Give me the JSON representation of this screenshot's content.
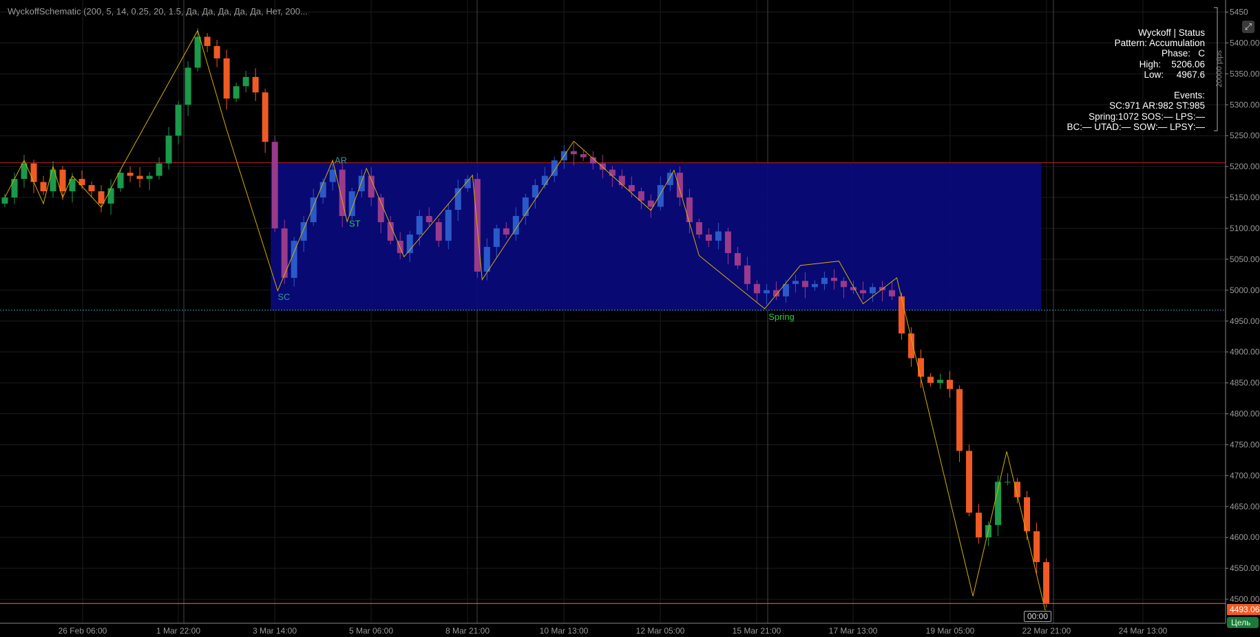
{
  "indicator_title": "WyckoffSchematic (200, 5, 14, 0.25, 20, 1.5, Да, Да, Да, Да, Да, Нет, 200...",
  "status_panel": {
    "lines": [
      "Wyckoff | Status",
      "Pattern: Accumulation",
      "Phase:   C",
      "High:    5206.06",
      "Low:     4967.6",
      "",
      "Events:",
      "SC:971 AR:982 ST:985",
      "Spring:1072 SOS:— LPS:—",
      "BC:— UTAD:— SOW:— LPSY:—"
    ],
    "pips_label": "20000 pips"
  },
  "corner_button_icon": "expand-arrow-icon",
  "current_price_label": "4493.06",
  "target_label": "Цель",
  "cursor_time_label": "00:00",
  "colors": {
    "up": "#1a9a4a",
    "down": "#f05a24",
    "box_up": "#2a5ac8",
    "box_down": "#9a3a8a",
    "box_fill": "#0a0a80",
    "zigzag": "#d4b000",
    "high_line": "#c02020",
    "low_line": "#2aa0c0",
    "price_line": "#f05a24",
    "event_label": "#20d040",
    "event_label_dim": "#2a9a9a"
  },
  "chart_data": {
    "type": "candlestick",
    "y_ticks": [
      5450,
      5400,
      5350,
      5300,
      5250,
      5200,
      5150,
      5100,
      5050,
      5000,
      4950,
      4900,
      4850,
      4800,
      4750,
      4700,
      4650,
      4600,
      4550,
      4500
    ],
    "y_tick_labels": [
      "5450",
      "5400.00",
      "5350.00",
      "5300.00",
      "5250.00",
      "5200.00",
      "5150.00",
      "5100.00",
      "5050.00",
      "5000.00",
      "4950.00",
      "4900.00",
      "4850.00",
      "4800.00",
      "4750.00",
      "4700.00",
      "4650.00",
      "4600.00",
      "4550.00",
      "4500.00"
    ],
    "x_tick_labels": [
      "26 Feb 06:00",
      "1 Mar 22:00",
      "3 Mar 14:00",
      "5 Mar 06:00",
      "8 Mar 21:00",
      "10 Mar 13:00",
      "12 Mar 05:00",
      "15 Mar 21:00",
      "17 Mar 13:00",
      "19 Mar 05:00",
      "22 Mar 21:00",
      "24 Mar 13:00"
    ],
    "closes": [
      5150,
      5180,
      5205,
      5175,
      5160,
      5195,
      5160,
      5180,
      5170,
      5160,
      5140,
      5165,
      5190,
      5185,
      5180,
      5185,
      5205,
      5250,
      5300,
      5360,
      5410,
      5395,
      5375,
      5310,
      5330,
      5345,
      5320,
      5240,
      5100,
      5020,
      5080,
      5110,
      5150,
      5175,
      5195,
      5120,
      5160,
      5185,
      5150,
      5110,
      5080,
      5060,
      5090,
      5120,
      5110,
      5080,
      5130,
      5165,
      5180,
      5030,
      5070,
      5100,
      5090,
      5120,
      5150,
      5170,
      5185,
      5210,
      5225,
      5220,
      5215,
      5205,
      5195,
      5185,
      5170,
      5160,
      5145,
      5135,
      5170,
      5190,
      5150,
      5110,
      5090,
      5080,
      5095,
      5060,
      5040,
      5010,
      4995,
      5000,
      4990,
      5010,
      5015,
      5005,
      5010,
      5020,
      5015,
      5005,
      5000,
      4995,
      5005,
      5000,
      4990,
      4930,
      4890,
      4860,
      4850,
      4855,
      4840,
      4740,
      4640,
      4600,
      4620,
      4690,
      4690,
      4665,
      4610,
      4560,
      4493.06
    ],
    "zigzag": [
      [
        0,
        5150
      ],
      [
        2,
        5210
      ],
      [
        4,
        5140
      ],
      [
        5,
        5200
      ],
      [
        6,
        5150
      ],
      [
        7,
        5185
      ],
      [
        10,
        5134
      ],
      [
        12,
        5195
      ],
      [
        20,
        5420
      ],
      [
        23,
        5260
      ],
      [
        28.3,
        4999
      ],
      [
        34,
        5210
      ],
      [
        35.5,
        5111
      ],
      [
        37.5,
        5197
      ],
      [
        41.4,
        5054
      ],
      [
        48.5,
        5186
      ],
      [
        49.5,
        5017
      ],
      [
        59,
        5241
      ],
      [
        67,
        5129
      ],
      [
        69.4,
        5194
      ],
      [
        72,
        5056
      ],
      [
        78.8,
        4970
      ],
      [
        82.5,
        5040
      ],
      [
        86.5,
        5047
      ],
      [
        89,
        4978
      ],
      [
        92.5,
        5020
      ],
      [
        100.4,
        4505
      ],
      [
        103.9,
        4739
      ],
      [
        107.9,
        4482
      ]
    ],
    "range_box": {
      "high": 5206.06,
      "low": 4967.6,
      "from_index": 28,
      "to_index": 107.5
    },
    "events": [
      {
        "label": "SC",
        "index": 28.3,
        "price": 4984
      },
      {
        "label": "AR",
        "index": 34.2,
        "price": 5205
      },
      {
        "label": "ST",
        "index": 35.7,
        "price": 5103
      },
      {
        "label": "Spring",
        "index": 79.2,
        "price": 4952
      }
    ],
    "last_price": 4493.06
  }
}
